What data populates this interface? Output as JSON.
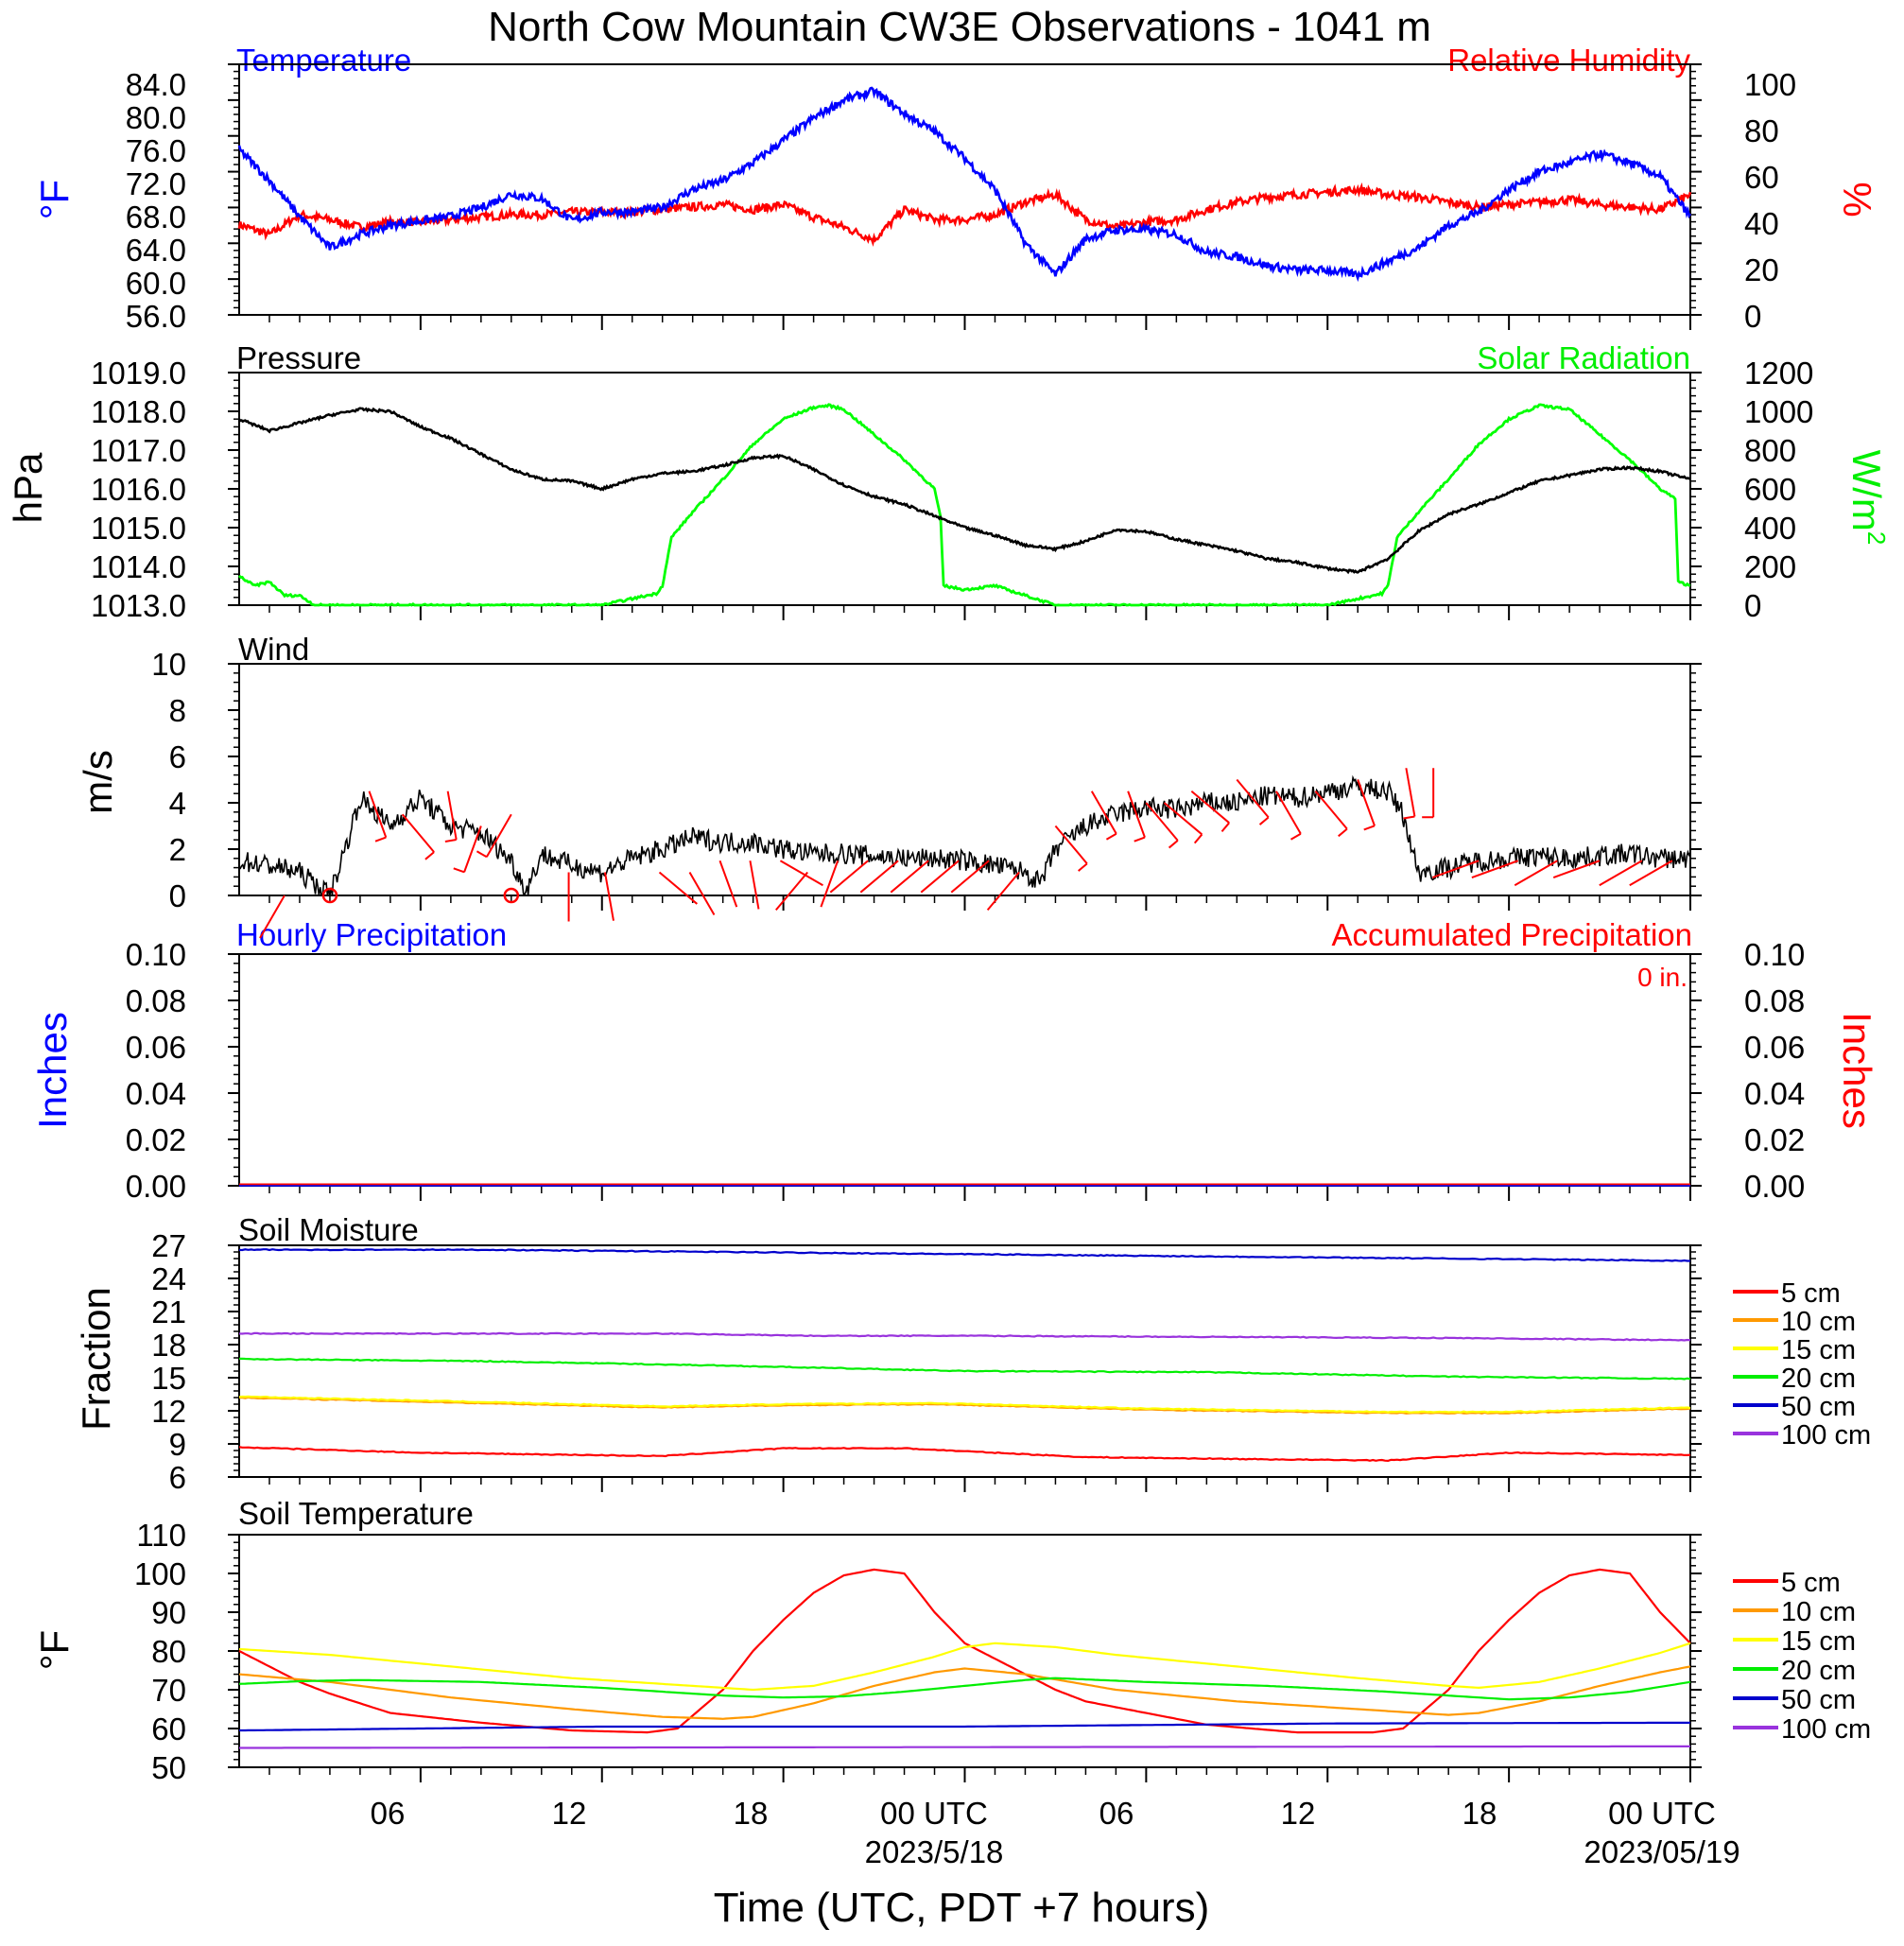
{
  "title": "North Cow Mountain CW3E Observations - 1041 m",
  "xlabel": "Time (UTC, PDT +7 hours)",
  "x_ticks": [
    {
      "label": "06"
    },
    {
      "label": "12"
    },
    {
      "label": "18"
    },
    {
      "label": "00 UTC",
      "date": "2023/5/18"
    },
    {
      "label": "06"
    },
    {
      "label": "12"
    },
    {
      "label": "18"
    },
    {
      "label": "00 UTC",
      "date": "2023/05/19"
    }
  ],
  "colors": {
    "temperature": "#0000ff",
    "humidity": "#ff0000",
    "pressure": "#000000",
    "solar": "#00ff00",
    "wind": "#000000",
    "wind_barbs": "#ff0000",
    "hourly_precip": "#0000ff",
    "accum_precip": "#ff0000",
    "depth_5": "#ff0000",
    "depth_10": "#ff9900",
    "depth_15": "#ffff00",
    "depth_20": "#00ee00",
    "depth_50": "#0000cc",
    "depth_100": "#9933dd"
  },
  "panels": {
    "temp": {
      "left_title": "Temperature",
      "right_title": "Relative Humidity",
      "left_unit": "°F",
      "right_unit": "%",
      "left_ticks": [
        "84.0",
        "80.0",
        "76.0",
        "72.0",
        "68.0",
        "64.0",
        "60.0",
        "56.0"
      ],
      "right_ticks": [
        "100",
        "80",
        "60",
        "40",
        "20",
        "0"
      ]
    },
    "pressure": {
      "left_title": "Pressure",
      "right_title": "Solar Radiation",
      "left_unit": "hPa",
      "right_unit": "W/m",
      "right_unit_sup": "2",
      "left_ticks": [
        "1019.0",
        "1018.0",
        "1017.0",
        "1016.0",
        "1015.0",
        "1014.0",
        "1013.0"
      ],
      "right_ticks": [
        "1200",
        "1000",
        "800",
        "600",
        "400",
        "200",
        "0"
      ]
    },
    "wind": {
      "left_title": "Wind",
      "left_unit": "m/s",
      "left_ticks": [
        "10",
        "8",
        "6",
        "4",
        "2",
        "0"
      ]
    },
    "precip": {
      "left_title": "Hourly Precipitation",
      "right_title": "Accumulated Precipitation",
      "total": "0 in.",
      "left_unit": "Inches",
      "right_unit": "Inches",
      "left_ticks": [
        "0.10",
        "0.08",
        "0.06",
        "0.04",
        "0.02",
        "0.00"
      ],
      "right_ticks": [
        "0.10",
        "0.08",
        "0.06",
        "0.04",
        "0.02",
        "0.00"
      ]
    },
    "soil_moisture": {
      "left_title": "Soil Moisture",
      "left_unit": "Fraction",
      "left_ticks": [
        "27",
        "24",
        "21",
        "18",
        "15",
        "12",
        "9",
        "6"
      ],
      "legend": [
        "5 cm",
        "10 cm",
        "15 cm",
        "20 cm",
        "50 cm",
        "100 cm"
      ]
    },
    "soil_temp": {
      "left_title": "Soil Temperature",
      "left_unit": "°F",
      "left_ticks": [
        "110",
        "100",
        "90",
        "80",
        "70",
        "60",
        "50"
      ],
      "legend": [
        "5 cm",
        "10 cm",
        "15 cm",
        "20 cm",
        "50 cm",
        "100 cm"
      ]
    }
  },
  "chart_data": [
    {
      "type": "line",
      "title": "Temperature / Relative Humidity",
      "xlim_hours": [
        1,
        49
      ],
      "ylim_left": [
        56,
        84
      ],
      "ylim_right": [
        0,
        100
      ],
      "series": [
        {
          "name": "Temperature",
          "axis": "left",
          "x": [
            1,
            2,
            3,
            4,
            5,
            6,
            7,
            8,
            9,
            10,
            11,
            12,
            13,
            14,
            15,
            16,
            17,
            18,
            19,
            20,
            21,
            22,
            23,
            24,
            25,
            26,
            27,
            28,
            29,
            30,
            31,
            32,
            33,
            34,
            35,
            36,
            37,
            38,
            39,
            40,
            41,
            42,
            43,
            44,
            45,
            46,
            47,
            48,
            49
          ],
          "y": [
            74.5,
            71,
            67,
            63.5,
            65,
            66,
            66.5,
            67,
            68,
            69.5,
            69,
            66.5,
            67.5,
            67.5,
            68,
            70,
            71,
            73,
            75.5,
            78,
            80,
            81,
            78.5,
            76.5,
            73.5,
            70,
            64,
            60.5,
            64.5,
            65.5,
            65.5,
            65,
            63,
            62.5,
            61.5,
            61,
            61,
            60.5,
            62,
            63.5,
            66,
            67.5,
            70,
            72,
            73,
            74,
            73,
            71.5,
            67
          ]
        },
        {
          "name": "Relative Humidity",
          "axis": "right",
          "x": [
            1,
            2,
            3,
            4,
            5,
            6,
            7,
            8,
            9,
            10,
            11,
            12,
            13,
            14,
            15,
            16,
            17,
            18,
            19,
            20,
            21,
            22,
            23,
            24,
            25,
            26,
            27,
            28,
            29,
            30,
            31,
            32,
            33,
            34,
            35,
            36,
            37,
            38,
            39,
            40,
            41,
            42,
            43,
            44,
            45,
            46,
            47,
            48,
            49
          ],
          "y": [
            36,
            32,
            40,
            38,
            35,
            37,
            37,
            38,
            39,
            40,
            40,
            41,
            41,
            41,
            42,
            43,
            44,
            42,
            44,
            39,
            35,
            30,
            42,
            38,
            38,
            40,
            45,
            48,
            38,
            35,
            37,
            38,
            42,
            45,
            47,
            48,
            49,
            50,
            48,
            47,
            45,
            43,
            44,
            45,
            46,
            44,
            43,
            42,
            48
          ]
        }
      ]
    },
    {
      "type": "line",
      "title": "Pressure / Solar Radiation",
      "xlim_hours": [
        1,
        49
      ],
      "ylim_left": [
        1013,
        1019
      ],
      "ylim_right": [
        0,
        1200
      ],
      "series": [
        {
          "name": "Pressure",
          "axis": "left",
          "x": [
            1,
            2,
            3,
            4,
            5,
            6,
            7,
            8,
            9,
            10,
            11,
            12,
            13,
            14,
            15,
            16,
            17,
            18,
            19,
            20,
            21,
            22,
            23,
            24,
            25,
            26,
            27,
            28,
            29,
            30,
            31,
            32,
            33,
            34,
            35,
            36,
            37,
            38,
            39,
            40,
            41,
            42,
            43,
            44,
            45,
            46,
            47,
            48,
            49
          ],
          "y": [
            1017.8,
            1017.5,
            1017.7,
            1017.9,
            1018.05,
            1018.0,
            1017.6,
            1017.3,
            1016.9,
            1016.5,
            1016.25,
            1016.2,
            1016.0,
            1016.25,
            1016.4,
            1016.45,
            1016.6,
            1016.8,
            1016.85,
            1016.5,
            1016.1,
            1015.8,
            1015.6,
            1015.3,
            1015.0,
            1014.8,
            1014.55,
            1014.45,
            1014.65,
            1014.95,
            1014.9,
            1014.7,
            1014.55,
            1014.4,
            1014.2,
            1014.1,
            1013.95,
            1013.85,
            1014.2,
            1014.9,
            1015.35,
            1015.6,
            1015.9,
            1016.2,
            1016.35,
            1016.5,
            1016.55,
            1016.45,
            1016.25
          ]
        },
        {
          "name": "Solar Radiation",
          "axis": "right",
          "x": [
            1,
            1.5,
            2,
            2.5,
            3,
            3.5,
            4,
            13,
            14.8,
            15.0,
            15.3,
            16,
            17,
            18,
            19,
            20,
            20.5,
            21,
            22,
            23,
            24,
            24.2,
            24.3,
            25,
            26,
            27,
            28,
            37,
            38.8,
            39.0,
            39.3,
            40,
            41,
            42,
            43,
            44,
            45,
            46,
            47,
            48,
            48.5,
            48.6,
            49
          ],
          "y": [
            150,
            100,
            120,
            50,
            50,
            0,
            0,
            0,
            60,
            100,
            350,
            480,
            650,
            830,
            960,
            1020,
            1030,
            1010,
            880,
            750,
            600,
            450,
            100,
            80,
            100,
            50,
            0,
            0,
            60,
            100,
            350,
            480,
            650,
            830,
            960,
            1030,
            1010,
            880,
            750,
            600,
            550,
            120,
            100
          ]
        }
      ]
    },
    {
      "type": "line",
      "title": "Wind",
      "xlim_hours": [
        1,
        49
      ],
      "ylim": [
        0,
        10
      ],
      "series": [
        {
          "name": "Wind Speed",
          "x": [
            1,
            2,
            3,
            4,
            4.5,
            5,
            6,
            7,
            8,
            9,
            10,
            10.5,
            11,
            12,
            13,
            14,
            15,
            16,
            17,
            18,
            19,
            20,
            21,
            22,
            23,
            24,
            25,
            26,
            27,
            27.5,
            28,
            29,
            30,
            31,
            32,
            33,
            34,
            35,
            36,
            37,
            38,
            39,
            39.5,
            40,
            41,
            42,
            43,
            44,
            45,
            46,
            47,
            48,
            49
          ],
          "y": [
            1.5,
            1.3,
            1.0,
            0.0,
            2.0,
            4.2,
            3.0,
            4.2,
            3.0,
            2.7,
            1.5,
            0.2,
            1.8,
            1.3,
            1.0,
            1.6,
            2.0,
            2.5,
            2.3,
            2.3,
            2.0,
            1.8,
            1.8,
            1.7,
            1.6,
            1.6,
            1.5,
            1.3,
            1.0,
            0.5,
            2.0,
            3.0,
            3.5,
            3.8,
            3.7,
            4.0,
            4.0,
            4.3,
            4.2,
            4.5,
            4.7,
            4.5,
            3.5,
            1.0,
            1.2,
            1.5,
            1.6,
            1.7,
            1.6,
            1.7,
            1.8,
            1.6,
            1.6
          ]
        }
      ]
    },
    {
      "type": "bar",
      "title": "Hourly / Accumulated Precipitation",
      "xlim_hours": [
        1,
        49
      ],
      "ylim_left": [
        0,
        0.1
      ],
      "ylim_right": [
        0,
        0.1
      ],
      "series": [
        {
          "name": "Hourly Precipitation",
          "values_all": 0.0
        },
        {
          "name": "Accumulated Precipitation",
          "values_all": 0.0,
          "total": 0
        }
      ]
    },
    {
      "type": "line",
      "title": "Soil Moisture",
      "xlim_hours": [
        1,
        49
      ],
      "ylim": [
        6,
        27
      ],
      "series": [
        {
          "name": "5 cm",
          "x": [
            1,
            7,
            15,
            19,
            23,
            29,
            35,
            39,
            43,
            49
          ],
          "y": [
            8.7,
            8.2,
            7.9,
            8.6,
            8.6,
            7.8,
            7.6,
            7.5,
            8.2,
            8.0
          ]
        },
        {
          "name": "10 cm",
          "x": [
            1,
            9,
            15,
            19,
            24,
            31,
            39,
            43,
            49
          ],
          "y": [
            13.2,
            12.7,
            12.3,
            12.5,
            12.6,
            12.1,
            11.8,
            11.8,
            12.2
          ]
        },
        {
          "name": "15 cm",
          "x": [
            1,
            9,
            15,
            19,
            24,
            31,
            39,
            43,
            49
          ],
          "y": [
            13.3,
            12.8,
            12.4,
            12.6,
            12.7,
            12.2,
            11.9,
            11.9,
            12.3
          ]
        },
        {
          "name": "20 cm",
          "x": [
            1,
            9,
            17,
            25,
            33,
            41,
            49
          ],
          "y": [
            16.7,
            16.5,
            16.1,
            15.6,
            15.5,
            15.1,
            14.9
          ]
        },
        {
          "name": "50 cm",
          "x": [
            1,
            9,
            17,
            25,
            33,
            41,
            49
          ],
          "y": [
            26.6,
            26.6,
            26.4,
            26.2,
            26.0,
            25.8,
            25.6
          ]
        },
        {
          "name": "100 cm",
          "x": [
            1,
            9,
            15,
            20,
            25,
            33,
            41,
            49
          ],
          "y": [
            19.0,
            19.0,
            19.0,
            18.8,
            18.8,
            18.7,
            18.6,
            18.4
          ]
        }
      ]
    },
    {
      "type": "line",
      "title": "Soil Temperature",
      "xlim_hours": [
        1,
        49
      ],
      "ylim": [
        50,
        110
      ],
      "series": [
        {
          "name": "5 cm",
          "x": [
            1,
            2,
            3,
            4,
            6,
            9,
            12,
            14.5,
            15.5,
            17,
            18,
            19,
            20,
            21,
            22,
            22.5,
            23,
            24,
            25,
            26,
            27,
            28,
            29,
            31,
            33,
            36,
            38.5,
            39.5,
            41,
            42,
            43,
            44,
            45,
            46,
            46.5,
            47,
            48,
            49
          ],
          "y": [
            80,
            76,
            72,
            69,
            64,
            61.5,
            59.5,
            59,
            60,
            70,
            80,
            88,
            95,
            99.5,
            101,
            100.5,
            100,
            90,
            82,
            78,
            74,
            70,
            67,
            64,
            61,
            59,
            59,
            60,
            70,
            80,
            88,
            95,
            99.5,
            101,
            100.5,
            100,
            90,
            82
          ]
        },
        {
          "name": "10 cm",
          "x": [
            1,
            4,
            8,
            12,
            15,
            17,
            18,
            20,
            22,
            24,
            25,
            27,
            30,
            34,
            38,
            41,
            42,
            44,
            46,
            48,
            49
          ],
          "y": [
            74,
            72,
            68,
            65,
            63,
            62.5,
            63,
            66.5,
            71,
            74.5,
            75.5,
            74,
            70,
            67,
            65,
            63.5,
            64,
            67,
            71,
            74.5,
            76
          ]
        },
        {
          "name": "15 cm",
          "x": [
            1,
            4,
            8,
            12,
            16,
            18,
            20,
            22,
            24,
            25,
            26,
            28,
            30,
            34,
            38,
            41,
            42,
            44,
            46,
            48,
            49
          ],
          "y": [
            80.5,
            79,
            76,
            73,
            71,
            70,
            71,
            74.5,
            78.5,
            81,
            82,
            81,
            79,
            76,
            73,
            71,
            70.5,
            72,
            75.5,
            79.5,
            82
          ]
        },
        {
          "name": "20 cm",
          "x": [
            1,
            3,
            5,
            9,
            13,
            17,
            19,
            21,
            23,
            25,
            27,
            28,
            31,
            35,
            39,
            42,
            43,
            45,
            47,
            49
          ],
          "y": [
            71.5,
            72.2,
            72.5,
            72,
            70.5,
            68.5,
            68,
            68.3,
            69.5,
            71,
            72.5,
            73,
            72,
            71,
            69.5,
            68,
            67.5,
            68,
            69.5,
            72
          ]
        },
        {
          "name": "50 cm",
          "x": [
            1,
            13,
            25,
            37,
            49
          ],
          "y": [
            59.5,
            60.5,
            60.5,
            61.3,
            61.5
          ]
        },
        {
          "name": "100 cm",
          "x": [
            1,
            25,
            49
          ],
          "y": [
            55,
            55.2,
            55.4
          ]
        }
      ]
    }
  ]
}
